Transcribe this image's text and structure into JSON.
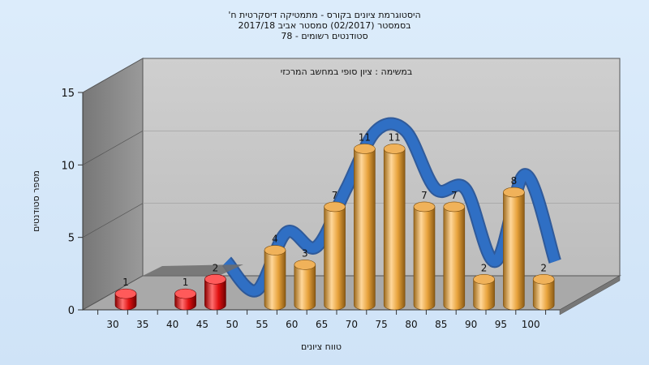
{
  "header": {
    "line1": "היסטוגרמת ציונים בקורס - מתמטיקה דיסקרטית ח'",
    "line2": "בסמסטר  (02/2017)  סמסטר אביב 2017/18",
    "line3": "סטודנטים רשומים - 78"
  },
  "chart_data": {
    "type": "bar",
    "annotation": "במשימה : ציון סופי במחשב המרכזי",
    "xlabel": "טווח ציונים",
    "ylabel": "מספר סטודנטים",
    "ylim": [
      0,
      15
    ],
    "y_ticks": [
      0,
      5,
      10,
      15
    ],
    "x_ticks": [
      "30",
      "35",
      "40",
      "45",
      "50",
      "55",
      "60",
      "65",
      "70",
      "75",
      "80",
      "85",
      "90",
      "95",
      "100"
    ],
    "categories": [
      30,
      35,
      40,
      45,
      50,
      55,
      60,
      65,
      70,
      75,
      80,
      85,
      90,
      95,
      100
    ],
    "values": [
      1,
      0,
      1,
      2,
      0,
      4,
      3,
      7,
      11,
      11,
      7,
      7,
      2,
      8,
      2
    ],
    "failing_below": 55,
    "colors": {
      "failing": "#e01010",
      "passing": "#e8a33c",
      "curve": "#2f6fc4",
      "wall": "#8a8a8a",
      "floor": "#a8a8a8",
      "back": "#c6c6c6"
    },
    "grid": true
  }
}
